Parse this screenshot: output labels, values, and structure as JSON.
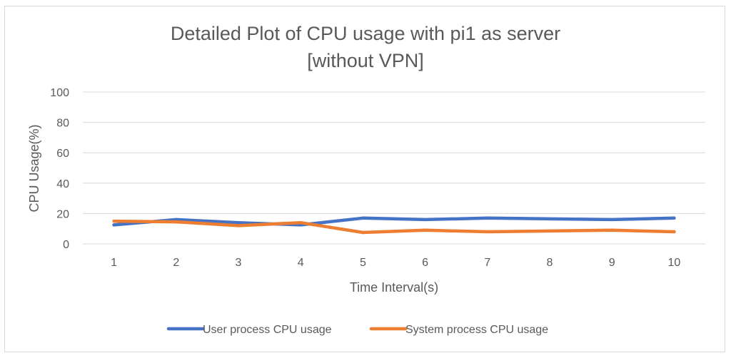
{
  "chart_data": {
    "type": "line",
    "title_lines": [
      "Detailed Plot of CPU usage with pi1 as server",
      "[without VPN]"
    ],
    "xlabel": "Time Interval(s)",
    "ylabel": "CPU Usage(%)",
    "categories": [
      "1",
      "2",
      "3",
      "4",
      "5",
      "6",
      "7",
      "8",
      "9",
      "10"
    ],
    "ylim": [
      0,
      100
    ],
    "yticks": [
      "0",
      "20",
      "40",
      "60",
      "80",
      "100"
    ],
    "grid": "horizontal",
    "legend_position": "bottom",
    "series": [
      {
        "name": "User process CPU usage",
        "color": "#4472c4",
        "values": [
          12.5,
          16,
          14,
          12.5,
          17,
          16,
          17,
          16.5,
          16,
          17
        ]
      },
      {
        "name": "System process CPU usage",
        "color": "#ed7d31",
        "values": [
          15,
          14.5,
          12,
          14,
          7.5,
          9,
          8,
          8.5,
          9,
          8
        ]
      }
    ]
  }
}
